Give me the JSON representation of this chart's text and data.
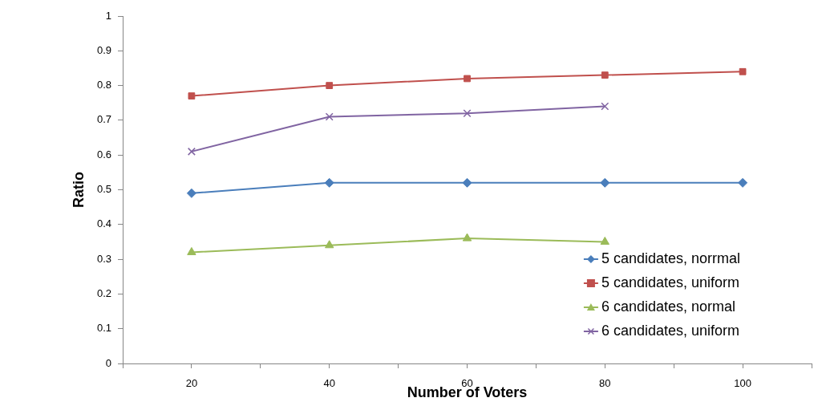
{
  "chart_data": {
    "type": "line",
    "xlabel": "Number of Voters",
    "ylabel": "Ratio",
    "x": [
      20,
      40,
      60,
      80,
      100
    ],
    "xlim": [
      10,
      110
    ],
    "xticks": [
      {
        "value": 10,
        "label": null
      },
      20,
      {
        "value": 30,
        "label": null
      },
      40,
      {
        "value": 50,
        "label": null
      },
      60,
      {
        "value": 70,
        "label": null
      },
      80,
      {
        "value": 90,
        "label": null
      },
      100,
      {
        "value": 110,
        "label": null
      }
    ],
    "ylim": [
      0,
      1
    ],
    "yticks": [
      0,
      0.1,
      0.2,
      0.3,
      0.4,
      0.5,
      0.6,
      0.7,
      0.8,
      0.9,
      1
    ],
    "grid": false,
    "legend": "bottom right",
    "line_style": "solid",
    "series": [
      {
        "name": "5 candidates, norrmal",
        "color": "#4a7ebb",
        "marker": "diamond",
        "values": [
          0.49,
          0.52,
          0.52,
          0.52,
          0.52
        ]
      },
      {
        "name": "5 candidates, uniform",
        "color": "#c0504d",
        "marker": "square",
        "values": [
          0.77,
          0.8,
          0.82,
          0.83,
          0.84
        ]
      },
      {
        "name": "6 candidates, normal",
        "color": "#9bbb59",
        "marker": "triangle",
        "values": [
          0.32,
          0.34,
          0.36,
          0.35,
          null
        ]
      },
      {
        "name": "6 candidates, uniform",
        "color": "#8064a2",
        "marker": "cross",
        "values": [
          0.61,
          0.71,
          0.72,
          0.74,
          null
        ]
      }
    ]
  }
}
